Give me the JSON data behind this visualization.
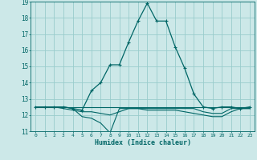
{
  "title": "",
  "xlabel": "Humidex (Indice chaleur)",
  "background_color": "#cce8e8",
  "grid_color": "#99cccc",
  "line_color": "#006666",
  "xlim": [
    -0.5,
    23.5
  ],
  "ylim": [
    11,
    19
  ],
  "xticks": [
    0,
    1,
    2,
    3,
    4,
    5,
    6,
    7,
    8,
    9,
    10,
    11,
    12,
    13,
    14,
    15,
    16,
    17,
    18,
    19,
    20,
    21,
    22,
    23
  ],
  "yticks": [
    11,
    12,
    13,
    14,
    15,
    16,
    17,
    18,
    19
  ],
  "line_main_x": [
    0,
    1,
    2,
    3,
    4,
    5,
    6,
    7,
    8,
    9,
    10,
    11,
    12,
    13,
    14,
    15,
    16,
    17,
    18,
    19,
    20,
    21,
    22,
    23
  ],
  "line_main_y": [
    12.5,
    12.5,
    12.5,
    12.5,
    12.4,
    12.3,
    13.5,
    14.0,
    15.1,
    15.1,
    16.5,
    17.8,
    18.9,
    17.8,
    17.8,
    16.2,
    14.9,
    13.3,
    12.5,
    12.4,
    12.5,
    12.5,
    12.4,
    12.5
  ],
  "line_flat_y": [
    12.5,
    12.5,
    12.5,
    12.5,
    12.5,
    12.5,
    12.5,
    12.5,
    12.5,
    12.5,
    12.5,
    12.5,
    12.5,
    12.5,
    12.5,
    12.5,
    12.5,
    12.5,
    12.5,
    12.5,
    12.5,
    12.5,
    12.5,
    12.5
  ],
  "line_low1_y": [
    12.5,
    12.5,
    12.5,
    12.5,
    12.4,
    11.9,
    11.8,
    11.5,
    10.9,
    12.4,
    12.4,
    12.4,
    12.4,
    12.4,
    12.4,
    12.4,
    12.4,
    12.4,
    12.2,
    12.1,
    12.1,
    12.4,
    12.4,
    12.4
  ],
  "line_low2_y": [
    12.5,
    12.5,
    12.5,
    12.4,
    12.3,
    12.2,
    12.2,
    12.1,
    12.0,
    12.2,
    12.4,
    12.4,
    12.3,
    12.3,
    12.3,
    12.3,
    12.2,
    12.1,
    12.0,
    11.9,
    11.9,
    12.2,
    12.4,
    12.4
  ]
}
